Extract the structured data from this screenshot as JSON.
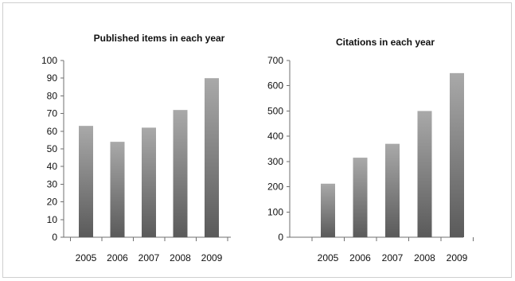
{
  "chart_data": [
    {
      "type": "bar",
      "title": "Published items in each year",
      "xlabel": "",
      "ylabel": "",
      "categories": [
        "2005",
        "2006",
        "2007",
        "2008",
        "2009"
      ],
      "values": [
        63,
        54,
        62,
        72,
        90
      ],
      "ylim": [
        0,
        100
      ],
      "yticks": [
        0,
        10,
        20,
        30,
        40,
        50,
        60,
        70,
        80,
        90,
        100
      ],
      "ytick_labels": [
        "0",
        "10",
        "20",
        "30",
        "40",
        "50",
        "60",
        "70",
        "80",
        "90",
        "100"
      ],
      "grid": false,
      "legend": "none",
      "bar_color": "#8a8a8a"
    },
    {
      "type": "bar",
      "title": "Citations in each year",
      "xlabel": "",
      "ylabel": "",
      "categories": [
        "2005",
        "2006",
        "2007",
        "2008",
        "2009"
      ],
      "values": [
        212,
        315,
        370,
        500,
        650
      ],
      "ylim": [
        0,
        700
      ],
      "yticks": [
        0,
        100,
        200,
        300,
        400,
        500,
        600,
        700
      ],
      "ytick_labels": [
        "0",
        "100",
        "200",
        "300",
        "400",
        "500",
        "600",
        "700"
      ],
      "grid": false,
      "legend": "none",
      "bar_color": "#8a8a8a"
    }
  ]
}
